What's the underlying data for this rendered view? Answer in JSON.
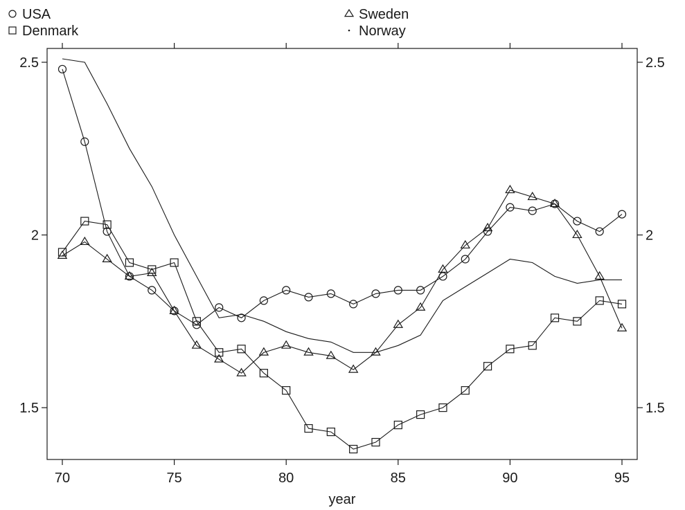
{
  "chart_data": {
    "type": "line",
    "title": "",
    "xlabel": "year",
    "ylabel": "",
    "xlim": [
      69.2,
      95.8
    ],
    "ylim": [
      1.35,
      2.54
    ],
    "x_ticks": [
      70,
      75,
      80,
      85,
      90,
      95
    ],
    "y_ticks": [
      1.5,
      2,
      2.5
    ],
    "x_tick_labels": [
      "70",
      "75",
      "80",
      "85",
      "90",
      "95"
    ],
    "y_tick_labels": [
      "1.5",
      "2",
      "2.5"
    ],
    "grid": false,
    "legend": {
      "placement": "top",
      "entries": [
        {
          "name": "USA",
          "marker": "circle",
          "position": "top-left-1"
        },
        {
          "name": "Denmark",
          "marker": "square",
          "position": "top-left-2"
        },
        {
          "name": "Sweden",
          "marker": "triangle",
          "position": "top-center-1"
        },
        {
          "name": "Norway",
          "marker": "dot",
          "position": "top-center-2"
        }
      ]
    },
    "x": [
      70,
      71,
      72,
      73,
      74,
      75,
      76,
      77,
      78,
      79,
      80,
      81,
      82,
      83,
      84,
      85,
      86,
      87,
      88,
      89,
      90,
      91,
      92,
      93,
      94,
      95
    ],
    "series": [
      {
        "name": "USA",
        "marker": "circle",
        "values": [
          2.48,
          2.27,
          2.01,
          1.88,
          1.84,
          1.78,
          1.74,
          1.79,
          1.76,
          1.81,
          1.84,
          1.82,
          1.83,
          1.8,
          1.83,
          1.84,
          1.84,
          1.88,
          1.93,
          2.01,
          2.08,
          2.07,
          2.09,
          2.04,
          2.01,
          2.06
        ]
      },
      {
        "name": "Denmark",
        "marker": "square",
        "values": [
          1.95,
          2.04,
          2.03,
          1.92,
          1.9,
          1.92,
          1.75,
          1.66,
          1.67,
          1.6,
          1.55,
          1.44,
          1.43,
          1.38,
          1.4,
          1.45,
          1.48,
          1.5,
          1.55,
          1.62,
          1.67,
          1.68,
          1.76,
          1.75,
          1.81,
          1.8
        ]
      },
      {
        "name": "Sweden",
        "marker": "triangle",
        "values": [
          1.94,
          1.98,
          1.93,
          1.88,
          1.89,
          1.78,
          1.68,
          1.64,
          1.6,
          1.66,
          1.68,
          1.66,
          1.65,
          1.61,
          1.66,
          1.74,
          1.79,
          1.9,
          1.97,
          2.02,
          2.13,
          2.11,
          2.09,
          2.0,
          1.88,
          1.73
        ]
      },
      {
        "name": "Norway",
        "marker": "dot",
        "values": [
          2.51,
          2.5,
          2.38,
          2.25,
          2.14,
          2.0,
          1.88,
          1.76,
          1.77,
          1.75,
          1.72,
          1.7,
          1.69,
          1.66,
          1.66,
          1.68,
          1.71,
          1.81,
          1.85,
          1.89,
          1.93,
          1.92,
          1.88,
          1.86,
          1.87,
          1.87
        ]
      }
    ]
  }
}
